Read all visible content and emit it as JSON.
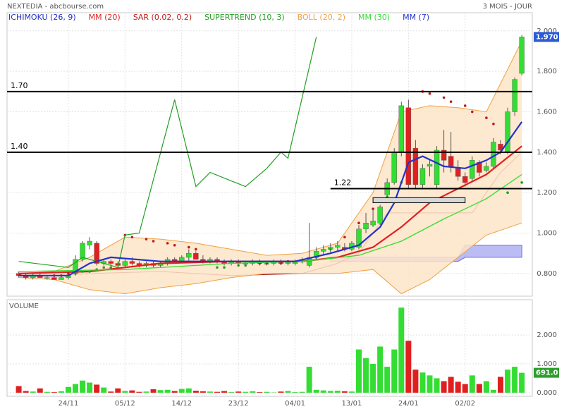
{
  "chart_data": [
    {
      "type": "candlestick",
      "title": "NEXTEDIA - abcbourse.com",
      "subtitle": "3 MOIS - JOUR",
      "categories": [
        null,
        null,
        null,
        null,
        null,
        null,
        null,
        "24/11",
        null,
        null,
        null,
        null,
        null,
        null,
        null,
        "05/12",
        null,
        null,
        null,
        null,
        null,
        null,
        null,
        "14/12",
        null,
        null,
        null,
        null,
        null,
        null,
        null,
        "23/12",
        null,
        null,
        null,
        null,
        null,
        null,
        null,
        "04/01",
        null,
        null,
        null,
        null,
        null,
        null,
        null,
        "13/01",
        null,
        null,
        null,
        null,
        null,
        null,
        null,
        "24/01",
        null,
        null,
        null,
        null,
        null,
        null,
        null,
        "02/02",
        null,
        null,
        null,
        null,
        null,
        null,
        null,
        null
      ],
      "open": [
        0.8,
        0.79,
        0.78,
        0.79,
        0.78,
        0.78,
        0.77,
        0.78,
        0.8,
        0.87,
        0.94,
        0.95,
        0.85,
        0.86,
        0.85,
        0.84,
        0.86,
        0.85,
        0.84,
        0.85,
        0.84,
        0.85,
        0.87,
        0.86,
        0.88,
        0.9,
        0.87,
        0.86,
        0.87,
        0.86,
        0.85,
        0.86,
        0.85,
        0.85,
        0.86,
        0.85,
        0.85,
        0.86,
        0.85,
        0.85,
        0.86,
        0.84,
        0.88,
        0.91,
        0.92,
        0.93,
        0.93,
        0.92,
        0.93,
        1.02,
        1.04,
        1.05,
        1.19,
        1.25,
        1.4,
        1.62,
        1.42,
        1.24,
        1.33,
        1.24,
        1.41,
        1.38,
        1.32,
        1.28,
        1.27,
        1.35,
        1.31,
        1.33,
        1.44,
        1.4,
        1.6,
        1.79
      ],
      "high": [
        0.81,
        0.8,
        0.8,
        0.8,
        0.79,
        0.79,
        0.79,
        0.8,
        0.89,
        0.96,
        0.98,
        0.96,
        0.87,
        0.87,
        0.86,
        0.87,
        0.88,
        0.86,
        0.86,
        0.86,
        0.86,
        0.88,
        0.88,
        0.89,
        0.92,
        0.91,
        0.89,
        0.88,
        0.88,
        0.87,
        0.87,
        0.87,
        0.86,
        0.87,
        0.87,
        0.86,
        0.87,
        0.87,
        0.86,
        0.87,
        0.88,
        1.05,
        0.93,
        0.94,
        0.95,
        0.96,
        0.95,
        0.96,
        1.04,
        1.1,
        1.12,
        1.14,
        1.27,
        1.42,
        1.65,
        1.66,
        1.46,
        1.34,
        1.36,
        1.43,
        1.51,
        1.5,
        1.36,
        1.3,
        1.38,
        1.36,
        1.35,
        1.47,
        1.46,
        1.62,
        1.77,
        1.98
      ],
      "low": [
        0.78,
        0.77,
        0.77,
        0.78,
        0.77,
        0.77,
        0.77,
        0.77,
        0.79,
        0.86,
        0.92,
        0.84,
        0.84,
        0.84,
        0.83,
        0.83,
        0.84,
        0.83,
        0.83,
        0.83,
        0.83,
        0.84,
        0.85,
        0.85,
        0.86,
        0.87,
        0.85,
        0.85,
        0.85,
        0.84,
        0.84,
        0.84,
        0.84,
        0.84,
        0.84,
        0.84,
        0.84,
        0.85,
        0.84,
        0.84,
        0.85,
        0.83,
        0.87,
        0.89,
        0.9,
        0.91,
        0.91,
        0.91,
        0.92,
        1.0,
        1.03,
        1.04,
        1.18,
        1.24,
        1.38,
        1.22,
        1.22,
        1.22,
        1.28,
        1.22,
        1.3,
        1.3,
        1.26,
        1.23,
        1.25,
        1.28,
        1.3,
        1.32,
        1.39,
        1.39,
        1.58,
        1.78
      ],
      "close": [
        0.79,
        0.78,
        0.79,
        0.78,
        0.78,
        0.77,
        0.78,
        0.79,
        0.87,
        0.95,
        0.96,
        0.85,
        0.86,
        0.85,
        0.84,
        0.86,
        0.85,
        0.84,
        0.85,
        0.84,
        0.85,
        0.87,
        0.86,
        0.88,
        0.9,
        0.87,
        0.86,
        0.87,
        0.86,
        0.85,
        0.86,
        0.85,
        0.85,
        0.86,
        0.85,
        0.85,
        0.86,
        0.85,
        0.86,
        0.86,
        0.87,
        0.88,
        0.91,
        0.92,
        0.93,
        0.94,
        0.92,
        0.95,
        1.02,
        1.05,
        1.06,
        1.13,
        1.25,
        1.4,
        1.63,
        1.24,
        1.24,
        1.32,
        1.34,
        1.41,
        1.36,
        1.33,
        1.28,
        1.25,
        1.36,
        1.3,
        1.33,
        1.45,
        1.41,
        1.6,
        1.76,
        1.97
      ],
      "up_color": "#33dd33",
      "down_color": "#e02020",
      "ylim": [
        0.688,
        2.09
      ],
      "yticks": [
        {
          "value": 0.8,
          "label": "0.800"
        },
        {
          "value": 1.0,
          "label": "1.000"
        },
        {
          "value": 1.2,
          "label": "1.200"
        },
        {
          "value": 1.4,
          "label": "1.400"
        },
        {
          "value": 1.6,
          "label": "1.600"
        },
        {
          "value": 1.8,
          "label": "1.800"
        },
        {
          "value": 2.0,
          "label": "2.000"
        }
      ],
      "grid": true,
      "last_label": "1.970",
      "last_label_color": "#2a5bd7",
      "levels": [
        {
          "value": 1.7,
          "label": "1.70"
        },
        {
          "value": 1.4,
          "label": "1.40"
        },
        {
          "value": 1.22,
          "label": "1.22",
          "from": 44
        }
      ],
      "zone": {
        "low": 1.15,
        "high": 1.175,
        "from": 50,
        "to": 63,
        "color": "#d8d8d8"
      },
      "indicators": [
        {
          "name": "ICHIMOKU (26, 9)",
          "kind": "ichimoku",
          "color": "#2030c0",
          "line_color": "#a01010",
          "cloud_color": "#6a6ae8",
          "x": [
            0,
            10,
            20,
            30,
            40,
            45,
            48,
            52,
            56,
            60,
            64,
            68,
            71
          ],
          "values": [
            0.78,
            0.8,
            0.81,
            0.79,
            0.8,
            0.85,
            0.9,
            1.1,
            1.1,
            1.1,
            1.1,
            1.3,
            1.4
          ],
          "cloud_x": [
            44,
            62,
            63,
            71
          ],
          "cloud_top": [
            0.88,
            0.88,
            0.94,
            0.94
          ],
          "cloud_bottom": [
            0.86,
            0.86,
            0.88,
            0.88
          ]
        },
        {
          "name": "MM (20)",
          "kind": "line",
          "color": "#e02020",
          "width": 2.2,
          "x": [
            0,
            10,
            20,
            30,
            40,
            45,
            50,
            54,
            58,
            62,
            66,
            71
          ],
          "values": [
            0.8,
            0.81,
            0.85,
            0.86,
            0.86,
            0.88,
            0.93,
            1.03,
            1.15,
            1.22,
            1.29,
            1.43
          ]
        },
        {
          "name": "SAR (0.02, 0.2)",
          "kind": "dots",
          "color": "#c01818",
          "up_color": "#22a022",
          "x": [
            5,
            6,
            7,
            8,
            9,
            10,
            11,
            12,
            13,
            15,
            16,
            18,
            19,
            21,
            22,
            24,
            25,
            28,
            29,
            31,
            32,
            34,
            35,
            37,
            38,
            40,
            42,
            44,
            46,
            48,
            50,
            52,
            54,
            57,
            58,
            60,
            61,
            63,
            64,
            66,
            67,
            69,
            71
          ],
          "values": [
            0.79,
            0.79,
            0.8,
            0.8,
            0.81,
            0.81,
            0.82,
            0.83,
            0.83,
            0.99,
            0.98,
            0.97,
            0.96,
            0.95,
            0.94,
            0.93,
            0.92,
            0.83,
            0.83,
            0.84,
            0.84,
            0.85,
            0.85,
            0.85,
            0.86,
            0.86,
            0.88,
            0.92,
            0.98,
            1.05,
            1.12,
            1.18,
            1.25,
            1.7,
            1.69,
            1.67,
            1.65,
            1.63,
            1.6,
            1.57,
            1.54,
            1.2,
            1.25
          ]
        },
        {
          "name": "SUPERTREND (10, 3)",
          "kind": "line",
          "color": "#22a022",
          "width": 1.2,
          "x": [
            0,
            7,
            9,
            14,
            15,
            17,
            22,
            25,
            27,
            32,
            35,
            37,
            38,
            42
          ],
          "values": [
            0.86,
            0.83,
            0.88,
            0.83,
            0.99,
            1.0,
            1.66,
            1.23,
            1.3,
            1.23,
            1.32,
            1.4,
            1.37,
            1.97
          ]
        },
        {
          "name": "BOLL (20, 2)",
          "kind": "band",
          "color": "#f0a040",
          "fill": "#fde4c8",
          "x": [
            0,
            5,
            10,
            15,
            20,
            25,
            30,
            35,
            40,
            45,
            50,
            54,
            58,
            62,
            66,
            71
          ],
          "upper": [
            0.8,
            0.81,
            0.88,
            0.98,
            0.97,
            0.95,
            0.92,
            0.89,
            0.9,
            0.95,
            1.2,
            1.6,
            1.63,
            1.62,
            1.6,
            1.95
          ],
          "lower": [
            0.78,
            0.77,
            0.72,
            0.7,
            0.73,
            0.75,
            0.78,
            0.8,
            0.8,
            0.8,
            0.82,
            0.7,
            0.77,
            0.88,
            0.99,
            1.05
          ]
        },
        {
          "name": "MM (30)",
          "kind": "line",
          "color": "#33dd33",
          "width": 1.3,
          "x": [
            0,
            15,
            30,
            40,
            48,
            54,
            60,
            66,
            71
          ],
          "values": [
            0.81,
            0.82,
            0.85,
            0.86,
            0.89,
            0.96,
            1.07,
            1.17,
            1.29
          ]
        },
        {
          "name": "MM (7)",
          "kind": "line",
          "color": "#2233cc",
          "width": 2.2,
          "x": [
            0,
            7,
            10,
            13,
            20,
            30,
            39,
            44,
            48,
            51,
            53,
            55,
            57,
            60,
            63,
            66,
            68,
            71
          ],
          "values": [
            0.79,
            0.79,
            0.85,
            0.88,
            0.86,
            0.86,
            0.86,
            0.9,
            0.94,
            1.03,
            1.15,
            1.35,
            1.38,
            1.33,
            1.32,
            1.36,
            1.4,
            1.55
          ]
        }
      ]
    },
    {
      "type": "bar",
      "title": "VOLUME",
      "values": [
        230,
        60,
        40,
        150,
        30,
        20,
        50,
        200,
        300,
        420,
        350,
        280,
        180,
        40,
        150,
        60,
        80,
        30,
        40,
        120,
        90,
        100,
        60,
        130,
        150,
        70,
        50,
        40,
        30,
        60,
        20,
        40,
        30,
        50,
        20,
        30,
        10,
        40,
        60,
        20,
        30,
        900,
        100,
        80,
        60,
        70,
        50,
        40,
        1500,
        1200,
        1000,
        1600,
        900,
        1500,
        2950,
        1800,
        800,
        700,
        600,
        500,
        400,
        550,
        380,
        300,
        600,
        300,
        400,
        100,
        550,
        800,
        900,
        691
      ],
      "ylim": [
        -125,
        3225
      ],
      "yticks": [
        {
          "value": 0,
          "label": "0.000"
        },
        {
          "value": 1000,
          "label": "1.000"
        },
        {
          "value": 2000,
          "label": "2.000"
        }
      ],
      "grid": true,
      "last_label": "691.0",
      "last_label_color": "#2e9e2e"
    }
  ]
}
